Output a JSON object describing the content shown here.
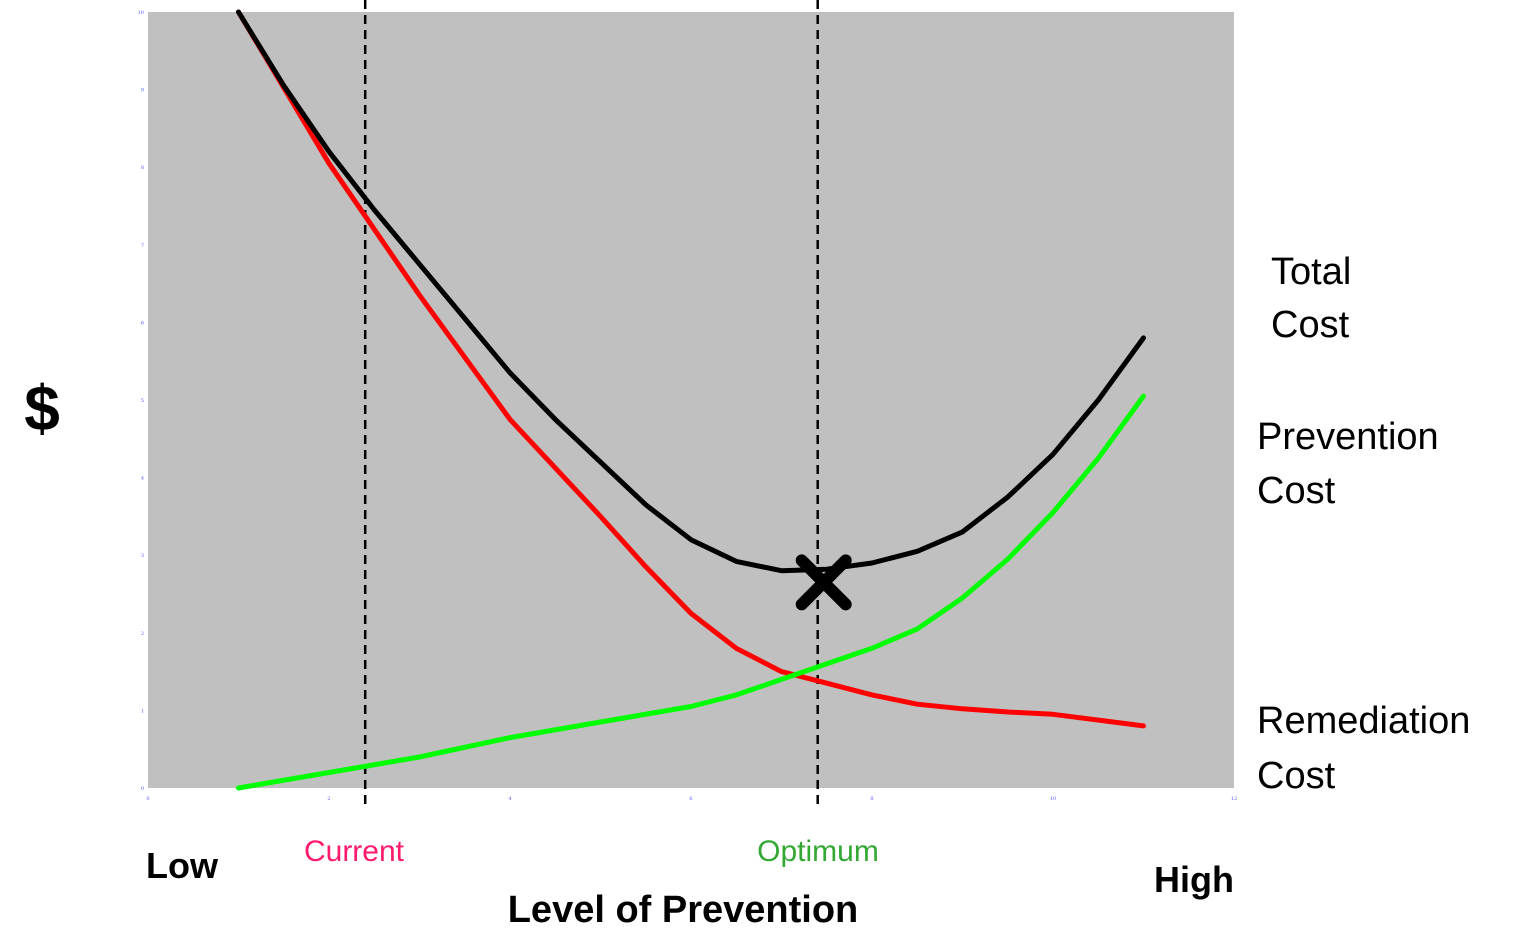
{
  "chart_data": {
    "type": "line",
    "xlabel": "Level of Prevention",
    "ylabel": "$",
    "x_low_label": "Low",
    "x_high_label": "High",
    "xlim": [
      0,
      12
    ],
    "ylim": [
      0,
      10
    ],
    "x_ticks": [
      "0",
      "2",
      "4",
      "6",
      "8",
      "10",
      "12"
    ],
    "y_ticks": [
      "0",
      "1",
      "2",
      "3",
      "4",
      "5",
      "6",
      "7",
      "8",
      "9",
      "10"
    ],
    "grid": false,
    "background": "#c0c0c0",
    "series": [
      {
        "name": "Total Cost",
        "color": "#000000",
        "x": [
          1.0,
          1.5,
          2.0,
          2.5,
          3.0,
          3.5,
          4.0,
          4.5,
          5.0,
          5.5,
          6.0,
          6.5,
          7.0,
          7.5,
          8.0,
          8.5,
          9.0,
          9.5,
          10.0,
          10.5,
          11.0
        ],
        "y": [
          10.0,
          9.05,
          8.2,
          7.45,
          6.75,
          6.05,
          5.35,
          4.75,
          4.2,
          3.65,
          3.2,
          2.92,
          2.8,
          2.82,
          2.9,
          3.05,
          3.3,
          3.75,
          4.3,
          5.0,
          5.8
        ]
      },
      {
        "name": "Prevention Cost",
        "color": "#00ff00",
        "x": [
          1.0,
          2.0,
          3.0,
          4.0,
          5.0,
          6.0,
          6.5,
          7.0,
          7.5,
          8.0,
          8.5,
          9.0,
          9.5,
          10.0,
          10.5,
          11.0
        ],
        "y": [
          0.0,
          0.2,
          0.4,
          0.65,
          0.85,
          1.05,
          1.2,
          1.4,
          1.6,
          1.8,
          2.05,
          2.45,
          2.95,
          3.55,
          4.25,
          5.05
        ]
      },
      {
        "name": "Remediation Cost",
        "color": "#ff0000",
        "x": [
          1.0,
          2.0,
          2.5,
          3.0,
          4.0,
          5.0,
          5.5,
          6.0,
          6.5,
          7.0,
          7.5,
          8.0,
          8.5,
          9.0,
          9.5,
          10.0,
          11.0
        ],
        "y": [
          10.0,
          8.05,
          7.2,
          6.35,
          4.75,
          3.5,
          2.85,
          2.25,
          1.8,
          1.5,
          1.35,
          1.2,
          1.08,
          1.02,
          0.98,
          0.95,
          0.8
        ]
      }
    ],
    "vlines": [
      {
        "label": "Current",
        "x": 2.4,
        "color": "#ff1a6e",
        "style": "dashed"
      },
      {
        "label": "Optimum",
        "x": 7.4,
        "color": "#33a833",
        "style": "dashed"
      }
    ],
    "marker": {
      "type": "x",
      "x": 7.4,
      "y": 2.65,
      "color": "#000000"
    }
  },
  "legend": {
    "total_cost_line1": "Total",
    "total_cost_line2": "Cost",
    "prevention_cost_line1": "Prevention",
    "prevention_cost_line2": "Cost",
    "remediation_cost_line1": "Remediation",
    "remediation_cost_line2": "Cost"
  }
}
